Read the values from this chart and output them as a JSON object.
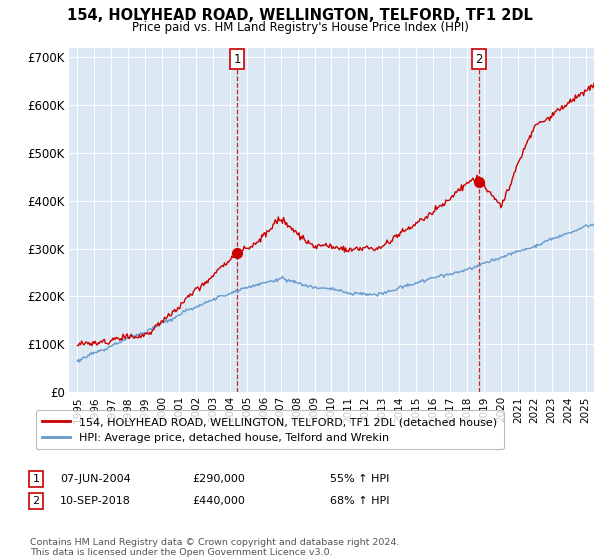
{
  "title": "154, HOLYHEAD ROAD, WELLINGTON, TELFORD, TF1 2DL",
  "subtitle": "Price paid vs. HM Land Registry's House Price Index (HPI)",
  "background_color": "#dce9f5",
  "plot_bg_color": "#dce9f5",
  "red_line_label": "154, HOLYHEAD ROAD, WELLINGTON, TELFORD, TF1 2DL (detached house)",
  "blue_line_label": "HPI: Average price, detached house, Telford and Wrekin",
  "transactions": [
    {
      "date": 2004.44,
      "price": 290000,
      "label": "1"
    },
    {
      "date": 2018.69,
      "price": 440000,
      "label": "2"
    }
  ],
  "transaction_annotations": [
    {
      "label": "1",
      "date_str": "07-JUN-2004",
      "price_str": "£290,000",
      "hpi_str": "55% ↑ HPI"
    },
    {
      "label": "2",
      "date_str": "10-SEP-2018",
      "price_str": "£440,000",
      "hpi_str": "68% ↑ HPI"
    }
  ],
  "ylim": [
    0,
    720000
  ],
  "xlim_start": 1994.5,
  "xlim_end": 2025.5,
  "yticks": [
    0,
    100000,
    200000,
    300000,
    400000,
    500000,
    600000,
    700000
  ],
  "ytick_labels": [
    "£0",
    "£100K",
    "£200K",
    "£300K",
    "£400K",
    "£500K",
    "£600K",
    "£700K"
  ],
  "xtick_years": [
    1995,
    1996,
    1997,
    1998,
    1999,
    2000,
    2001,
    2002,
    2003,
    2004,
    2005,
    2006,
    2007,
    2008,
    2009,
    2010,
    2011,
    2012,
    2013,
    2014,
    2015,
    2016,
    2017,
    2018,
    2019,
    2020,
    2021,
    2022,
    2023,
    2024,
    2025
  ],
  "footer_text": "Contains HM Land Registry data © Crown copyright and database right 2024.\nThis data is licensed under the Open Government Licence v3.0.",
  "red_color": "#cc0000",
  "blue_color": "#6699cc",
  "vline_color": "#cc0000",
  "marker_color": "#cc0000"
}
